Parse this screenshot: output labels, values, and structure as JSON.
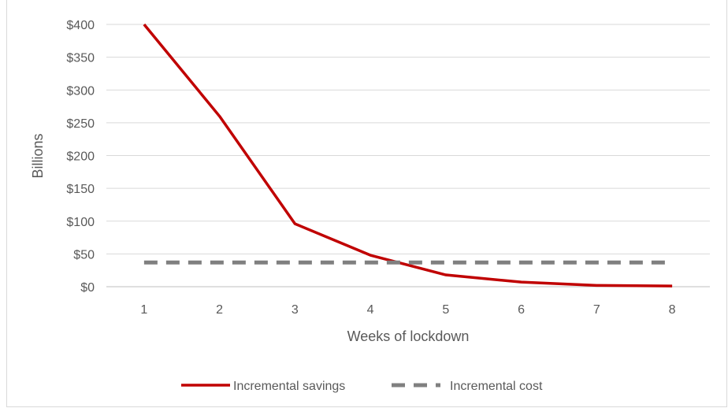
{
  "chart_data": {
    "type": "line",
    "title": "",
    "xlabel": "Weeks of lockdown",
    "ylabel": "Billions",
    "categories": [
      "1",
      "2",
      "3",
      "4",
      "5",
      "6",
      "7",
      "8"
    ],
    "ylim": [
      0,
      400
    ],
    "y_ticks": [
      0,
      50,
      100,
      150,
      200,
      250,
      300,
      350,
      400
    ],
    "y_tick_labels": [
      "$0",
      "$50",
      "$100",
      "$150",
      "$200",
      "$250",
      "$300",
      "$350",
      "$400"
    ],
    "grid": "horizontal",
    "legend": "bottom",
    "series": [
      {
        "name": "Incremental savings",
        "values": [
          400,
          260,
          96,
          48,
          18,
          7,
          2,
          1
        ],
        "color": "#c00000",
        "style": "solid"
      },
      {
        "name": "Incremental cost",
        "values": [
          37,
          37,
          37,
          37,
          37,
          37,
          37,
          37
        ],
        "color": "#808080",
        "style": "dashed"
      }
    ]
  }
}
